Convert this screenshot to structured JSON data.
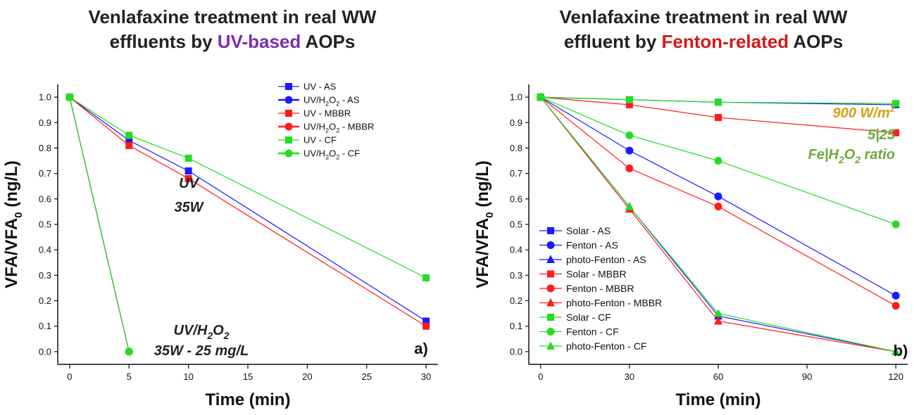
{
  "chart_data": [
    {
      "type": "line",
      "title": {
        "line1": "Venlafaxine treatment in real WW",
        "line2_pre": "effluents by ",
        "line2_hl": "UV-based",
        "line2_post": " AOPs"
      },
      "xlabel": "Time (min)",
      "ylabel": {
        "main": "VFA/VFA",
        "sub": "0",
        "post": " (ng/L)"
      },
      "xlim": [
        -1,
        31
      ],
      "ylim": [
        -0.05,
        1.05
      ],
      "xticks": [
        0,
        5,
        10,
        15,
        20,
        25,
        30
      ],
      "yticks": [
        0.0,
        0.1,
        0.2,
        0.3,
        0.4,
        0.5,
        0.6,
        0.7,
        0.8,
        0.9,
        1.0
      ],
      "series": [
        {
          "name": "UV - AS",
          "color": "#1a1aff",
          "marker": "square",
          "x": [
            0,
            5,
            10,
            30
          ],
          "y": [
            1.0,
            0.83,
            0.71,
            0.12
          ]
        },
        {
          "name": "UV/H2O2 - AS",
          "color": "#1a1aff",
          "marker": "circle",
          "x": [
            0,
            5
          ],
          "y": [
            1.0,
            0.0
          ]
        },
        {
          "name": "UV - MBBR",
          "color": "#ff1a1a",
          "marker": "square",
          "x": [
            0,
            5,
            10,
            30
          ],
          "y": [
            1.0,
            0.81,
            0.68,
            0.1
          ]
        },
        {
          "name": "UV/H2O2 - MBBR",
          "color": "#ff1a1a",
          "marker": "circle",
          "x": [
            0,
            5
          ],
          "y": [
            1.0,
            0.0
          ]
        },
        {
          "name": "UV - CF",
          "color": "#22dd22",
          "marker": "square",
          "x": [
            0,
            5,
            10,
            30
          ],
          "y": [
            1.0,
            0.85,
            0.76,
            0.29
          ]
        },
        {
          "name": "UV/H2O2 - CF",
          "color": "#22dd22",
          "marker": "circle",
          "x": [
            0,
            5
          ],
          "y": [
            1.0,
            0.0
          ]
        }
      ],
      "legend": {
        "position": "top-right",
        "labels": [
          {
            "pre": "UV - AS"
          },
          {
            "pre": "UV/H",
            "sub1": "2",
            "mid": "O",
            "sub2": "2",
            "post": " - AS"
          },
          {
            "pre": "UV - MBBR"
          },
          {
            "pre": "UV/H",
            "sub1": "2",
            "mid": "O",
            "sub2": "2",
            "post": " - MBBR"
          },
          {
            "pre": "UV - CF"
          },
          {
            "pre": "UV/H",
            "sub1": "2",
            "mid": "O",
            "sub2": "2",
            "post": " - CF"
          }
        ]
      },
      "annotations": [
        {
          "id": "uv",
          "line1": "UV",
          "line2": "35W"
        },
        {
          "id": "uvh2o2",
          "line1_pre": "UV/H",
          "line1_sub1": "2",
          "line1_mid": "O",
          "line1_sub2": "2",
          "line2": "35W - 25 mg/L"
        }
      ],
      "panel_label": "a)"
    },
    {
      "type": "line",
      "title": {
        "line1": "Venlafaxine treatment in real WW",
        "line2_pre": "effluent by ",
        "line2_hl": "Fenton-related",
        "line2_post": " AOPs"
      },
      "xlabel": "Time (min)",
      "ylabel": {
        "main": "VFA/VFA",
        "sub": "0",
        "post": " (ng/L)"
      },
      "xlim": [
        -4,
        124
      ],
      "ylim": [
        -0.05,
        1.05
      ],
      "xticks": [
        0,
        30,
        60,
        90,
        120
      ],
      "yticks": [
        0.0,
        0.1,
        0.2,
        0.3,
        0.4,
        0.5,
        0.6,
        0.7,
        0.8,
        0.9,
        1.0
      ],
      "series": [
        {
          "name": "Solar - AS",
          "color": "#1a1aff",
          "marker": "square",
          "x": [
            0,
            30,
            60,
            120
          ],
          "y": [
            1.0,
            0.99,
            0.98,
            0.97
          ]
        },
        {
          "name": "Fenton  - AS",
          "color": "#1a1aff",
          "marker": "circle",
          "x": [
            0,
            30,
            60,
            120
          ],
          "y": [
            1.0,
            0.79,
            0.61,
            0.22
          ]
        },
        {
          "name": "photo-Fenton - AS",
          "color": "#1a1aff",
          "marker": "triangle",
          "x": [
            0,
            30,
            60,
            120
          ],
          "y": [
            1.0,
            0.57,
            0.14,
            0.0
          ]
        },
        {
          "name": "Solar - MBBR",
          "color": "#ff1a1a",
          "marker": "square",
          "x": [
            0,
            30,
            60,
            120
          ],
          "y": [
            1.0,
            0.97,
            0.92,
            0.86
          ]
        },
        {
          "name": "Fenton  - MBBR",
          "color": "#ff1a1a",
          "marker": "circle",
          "x": [
            0,
            30,
            60,
            120
          ],
          "y": [
            1.0,
            0.72,
            0.57,
            0.18
          ]
        },
        {
          "name": "photo-Fenton - MBBR",
          "color": "#ff1a1a",
          "marker": "triangle",
          "x": [
            0,
            30,
            60,
            120
          ],
          "y": [
            1.0,
            0.56,
            0.12,
            0.0
          ]
        },
        {
          "name": "Solar - CF",
          "color": "#22dd22",
          "marker": "square",
          "x": [
            0,
            30,
            60,
            120
          ],
          "y": [
            1.0,
            0.99,
            0.98,
            0.975
          ]
        },
        {
          "name": "Fenton  - CF",
          "color": "#22dd22",
          "marker": "circle",
          "x": [
            0,
            30,
            60,
            120
          ],
          "y": [
            1.0,
            0.85,
            0.75,
            0.5
          ]
        },
        {
          "name": "photo-Fenton - CF",
          "color": "#22dd22",
          "marker": "triangle",
          "x": [
            0,
            30,
            60,
            120
          ],
          "y": [
            1.0,
            0.57,
            0.15,
            0.0
          ]
        }
      ],
      "legend": {
        "position": "bottom-left"
      },
      "annotations": [
        {
          "id": "power",
          "pre": "900 W/m",
          "sup": "2",
          "color": "#d4a017"
        },
        {
          "id": "ratio",
          "line1": "5|25",
          "line2_pre": "Fe|H",
          "line2_sub1": "2",
          "line2_mid": "O",
          "line2_sub2": "2",
          "line2_post": " ratio",
          "color": "#6aaa3a"
        }
      ],
      "panel_label": "b)"
    }
  ]
}
